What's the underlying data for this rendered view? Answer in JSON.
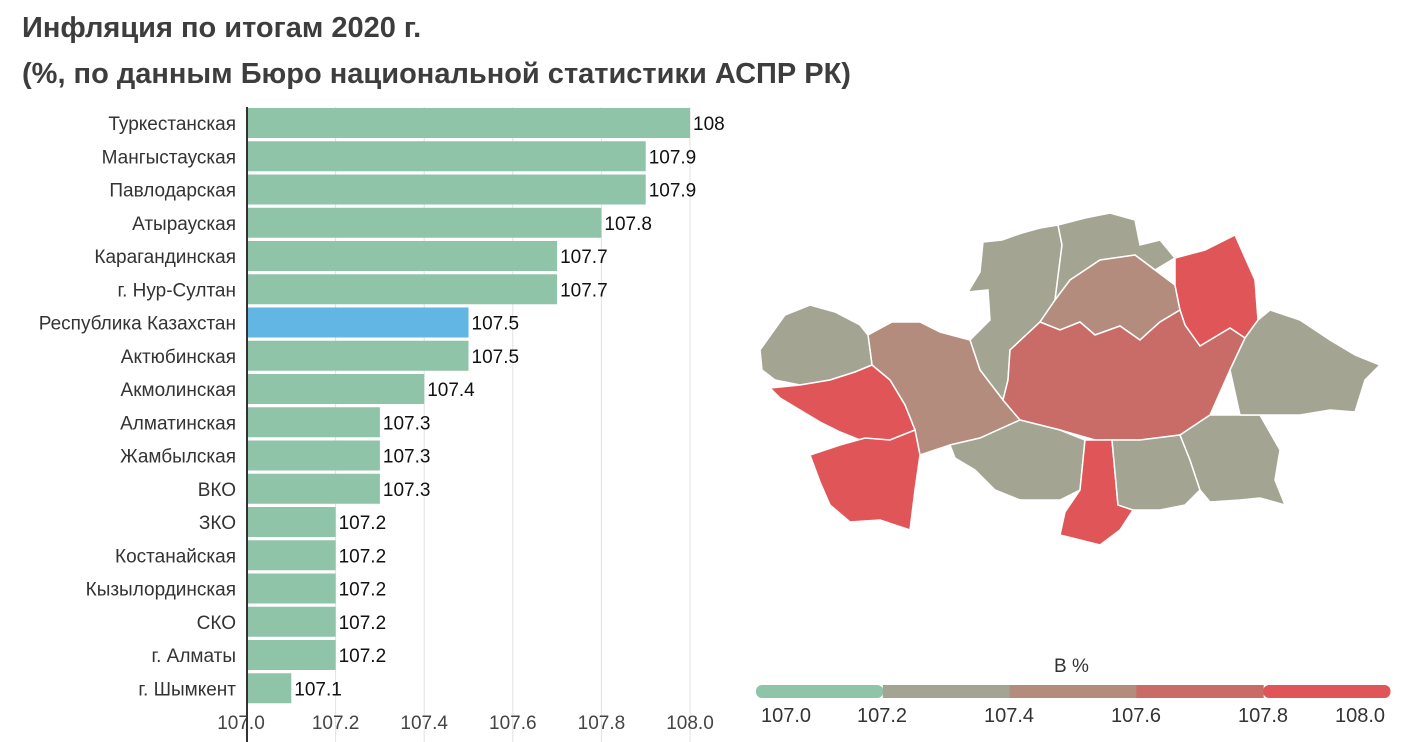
{
  "title": "Инфляция по итогам 2020 г.",
  "subtitle": "(%, по данным Бюро национальной статистики АСПР РК)",
  "colors": {
    "bar_default": "#8fc4a8",
    "bar_highlight": "#62b6e3",
    "grid": "#e2e2e2",
    "axis": "#333333"
  },
  "chart_data": {
    "type": "bar",
    "orientation": "horizontal",
    "title": "Инфляция по итогам 2020 г.",
    "subtitle": "(%, по данным Бюро национальной статистики АСПР РК)",
    "categories": [
      "Туркестанская",
      "Мангыстауская",
      "Павлодарская",
      "Атырауская",
      "Карагандинская",
      "г. Нур-Султан",
      "Республика Казахстан",
      "Актюбинская",
      "Акмолинская",
      "Алматинская",
      "Жамбылская",
      "ВКО",
      "ЗКО",
      "Костанайская",
      "Кызылординская",
      "СКО",
      "г. Алматы",
      "г. Шымкент"
    ],
    "values": [
      108,
      107.9,
      107.9,
      107.8,
      107.7,
      107.7,
      107.5,
      107.5,
      107.4,
      107.3,
      107.3,
      107.3,
      107.2,
      107.2,
      107.2,
      107.2,
      107.2,
      107.1
    ],
    "value_labels": [
      "108",
      "107.9",
      "107.9",
      "107.8",
      "107.7",
      "107.7",
      "107.5",
      "107.5",
      "107.4",
      "107.3",
      "107.3",
      "107.3",
      "107.2",
      "107.2",
      "107.2",
      "107.2",
      "107.2",
      "107.1"
    ],
    "highlight": "Республика Казахстан",
    "xlim": [
      107.0,
      108.0
    ],
    "xticks": [
      "107.0",
      "107.2",
      "107.4",
      "107.6",
      "107.8",
      "108.0"
    ],
    "grid": true
  },
  "map": {
    "legend_title": "В %",
    "legend_ticks": [
      "107.0",
      "107.2",
      "107.4",
      "107.6",
      "107.8",
      "108.0"
    ],
    "legend_colors": [
      "#8fc4a8",
      "#a3a492",
      "#b48c7e",
      "#c96b66",
      "#e05557"
    ]
  }
}
